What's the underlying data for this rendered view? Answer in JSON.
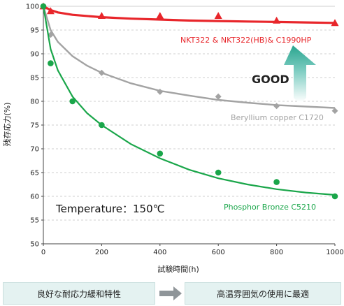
{
  "chart_data": {
    "type": "scatter",
    "ylabel": "残存応力(%)",
    "xlabel": "試験時間(h)",
    "xlim": [
      0,
      1000
    ],
    "ylim": [
      50,
      100
    ],
    "x_ticks": [
      "0",
      "200",
      "400",
      "600",
      "800",
      "1000"
    ],
    "y_ticks": [
      "50",
      "55",
      "60",
      "65",
      "70",
      "75",
      "80",
      "85",
      "90",
      "95",
      "100"
    ],
    "grid": "horizontal-dashed",
    "series": [
      {
        "name": "NKT322 & NKT322(HB)& C1990HP",
        "color": "#e8262b",
        "marker": "triangle",
        "points": [
          [
            0,
            100
          ],
          [
            25,
            99
          ],
          [
            200,
            98
          ],
          [
            400,
            98
          ],
          [
            600,
            98
          ],
          [
            800,
            97
          ],
          [
            1000,
            96.5
          ]
        ],
        "fit": [
          [
            0,
            100
          ],
          [
            25,
            99.2
          ],
          [
            50,
            98.7
          ],
          [
            100,
            98.2
          ],
          [
            200,
            97.7
          ],
          [
            300,
            97.4
          ],
          [
            400,
            97.2
          ],
          [
            500,
            97.0
          ],
          [
            600,
            96.9
          ],
          [
            700,
            96.8
          ],
          [
            800,
            96.7
          ],
          [
            900,
            96.6
          ],
          [
            1000,
            96.5
          ]
        ]
      },
      {
        "name": "Beryllium copper C1720",
        "color": "#a3a3a3",
        "marker": "diamond",
        "points": [
          [
            0,
            100
          ],
          [
            25,
            94
          ],
          [
            200,
            86
          ],
          [
            400,
            82
          ],
          [
            600,
            81
          ],
          [
            800,
            79
          ],
          [
            1000,
            78
          ]
        ],
        "fit": [
          [
            0,
            100
          ],
          [
            25,
            95
          ],
          [
            50,
            92.5
          ],
          [
            100,
            89.5
          ],
          [
            150,
            87.5
          ],
          [
            200,
            86
          ],
          [
            300,
            83.8
          ],
          [
            400,
            82.2
          ],
          [
            500,
            81.2
          ],
          [
            600,
            80.3
          ],
          [
            700,
            79.7
          ],
          [
            800,
            79.2
          ],
          [
            900,
            78.9
          ],
          [
            1000,
            78.6
          ]
        ]
      },
      {
        "name": "Phosphor Bronze C5210",
        "color": "#1aa64a",
        "marker": "circle",
        "points": [
          [
            0,
            100
          ],
          [
            25,
            88
          ],
          [
            100,
            80
          ],
          [
            200,
            75
          ],
          [
            400,
            69
          ],
          [
            600,
            65
          ],
          [
            800,
            63
          ],
          [
            1000,
            60
          ]
        ],
        "fit": [
          [
            0,
            100
          ],
          [
            25,
            91
          ],
          [
            50,
            86.5
          ],
          [
            100,
            81
          ],
          [
            150,
            77.5
          ],
          [
            200,
            75
          ],
          [
            300,
            71
          ],
          [
            400,
            68
          ],
          [
            500,
            65.6
          ],
          [
            600,
            63.8
          ],
          [
            700,
            62.5
          ],
          [
            800,
            61.5
          ],
          [
            900,
            60.8
          ],
          [
            1000,
            60.3
          ]
        ]
      }
    ],
    "annotations": {
      "temperature": "Temperature：150℃",
      "good": "GOOD"
    }
  },
  "footer": {
    "left_text": "良好な耐応力緩和特性",
    "right_text": "高温雰囲気の使用に最適"
  }
}
